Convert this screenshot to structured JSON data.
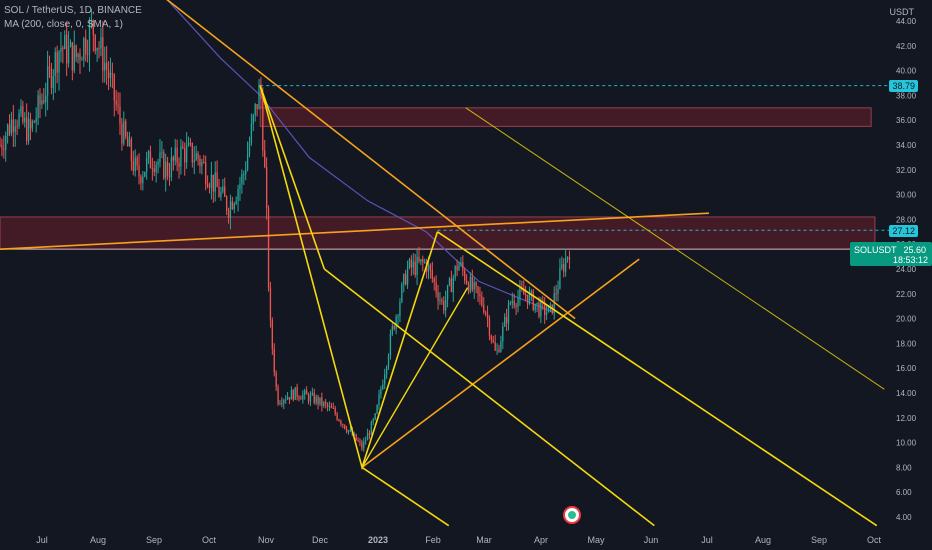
{
  "legend": {
    "title": "SOL / TetherUS, 1D, BINANCE",
    "indicator": "MA (200, close, 0, SMA, 1)"
  },
  "currency": "USDT",
  "price_tags": {
    "level_high": "38.79",
    "level_mid": "27.12",
    "symbol": "SOLUSDT",
    "last_price": "25.60",
    "countdown": "18:53:12"
  },
  "colors": {
    "background": "#131722",
    "up_candle": "#26a69a",
    "down_candle": "#ef5350",
    "ma": "#5b53b6",
    "zone": "#6b1f2a",
    "trendline": "#f7a21b",
    "pitchfork": "#f5d90a",
    "cyan_tag": "#26c6da",
    "price_tag": "#089981"
  },
  "chart_data": {
    "type": "candlestick",
    "title": "SOL / TetherUS, 1D, BINANCE",
    "y_axis_ticks": [
      "4.00",
      "6.00",
      "8.00",
      "10.00",
      "12.00",
      "14.00",
      "16.00",
      "18.00",
      "20.00",
      "22.00",
      "24.00",
      "26.00",
      "28.00",
      "30.00",
      "32.00",
      "34.00",
      "36.00",
      "38.00",
      "40.00",
      "42.00",
      "44.00"
    ],
    "x_axis_ticks": [
      "Jul",
      "Aug",
      "Sep",
      "Oct",
      "Nov",
      "Dec",
      "2023",
      "Feb",
      "Mar",
      "Apr",
      "May",
      "Jun",
      "Jul",
      "Aug",
      "Sep",
      "Oct"
    ],
    "ylim": [
      3,
      45
    ],
    "x_start": "2022-06-20",
    "x_end": "2023-10-05",
    "close_path": [
      [
        "2022-06-20",
        34.0
      ],
      [
        "2022-06-28",
        36.5
      ],
      [
        "2022-07-06",
        35.0
      ],
      [
        "2022-07-14",
        38.5
      ],
      [
        "2022-07-22",
        42.0
      ],
      [
        "2022-07-30",
        41.0
      ],
      [
        "2022-08-08",
        43.5
      ],
      [
        "2022-08-16",
        40.0
      ],
      [
        "2022-08-24",
        35.0
      ],
      [
        "2022-09-01",
        31.5
      ],
      [
        "2022-09-09",
        33.0
      ],
      [
        "2022-09-17",
        32.0
      ],
      [
        "2022-09-25",
        33.5
      ],
      [
        "2022-10-03",
        33.0
      ],
      [
        "2022-10-11",
        31.0
      ],
      [
        "2022-10-19",
        29.0
      ],
      [
        "2022-10-27",
        31.5
      ],
      [
        "2022-11-05",
        38.8
      ],
      [
        "2022-11-08",
        30.0
      ],
      [
        "2022-11-10",
        20.0
      ],
      [
        "2022-11-14",
        13.5
      ],
      [
        "2022-11-24",
        14.0
      ],
      [
        "2022-12-04",
        13.5
      ],
      [
        "2022-12-14",
        12.5
      ],
      [
        "2022-12-29",
        9.6
      ],
      [
        "2023-01-05",
        12.0
      ],
      [
        "2023-01-14",
        19.0
      ],
      [
        "2023-01-22",
        24.0
      ],
      [
        "2023-02-01",
        24.5
      ],
      [
        "2023-02-10",
        21.0
      ],
      [
        "2023-02-18",
        24.5
      ],
      [
        "2023-02-25",
        22.5
      ],
      [
        "2023-03-04",
        21.0
      ],
      [
        "2023-03-10",
        17.0
      ],
      [
        "2023-03-18",
        21.5
      ],
      [
        "2023-03-26",
        22.0
      ],
      [
        "2023-04-02",
        20.8
      ],
      [
        "2023-04-08",
        20.5
      ],
      [
        "2023-04-14",
        24.0
      ],
      [
        "2023-04-18",
        25.6
      ]
    ],
    "moving_average": {
      "name": "MA (200, close, 0, SMA, 1)",
      "points": [
        [
          "2022-08-15",
          52.0
        ],
        [
          "2022-09-15",
          46.0
        ],
        [
          "2022-10-15",
          41.0
        ],
        [
          "2022-11-05",
          38.0
        ],
        [
          "2022-12-01",
          33.0
        ],
        [
          "2023-01-01",
          29.5
        ],
        [
          "2023-02-01",
          27.0
        ],
        [
          "2023-03-01",
          23.0
        ],
        [
          "2023-03-20",
          21.8
        ],
        [
          "2023-04-10",
          20.5
        ]
      ]
    },
    "zones": [
      {
        "x1": "2022-11-05",
        "x2": "2023-09-25",
        "y1": 35.5,
        "y2": 37.0
      },
      {
        "x1": "2022-06-20",
        "x2": "2023-09-27",
        "y1": 25.6,
        "y2": 28.2
      }
    ],
    "horizontal_lines": [
      {
        "y": 38.79,
        "from": "2022-11-05"
      },
      {
        "y": 27.12,
        "from": "2023-02-07"
      },
      {
        "y": 25.6,
        "from": "2022-06-20"
      }
    ],
    "trendlines": [
      {
        "name": "descending",
        "color": "trendline",
        "from": [
          "2022-08-20",
          49.0
        ],
        "to": [
          "2023-04-21",
          20.0
        ]
      },
      {
        "name": "support",
        "color": "trendline",
        "from": [
          "2022-06-20",
          25.6
        ],
        "to": [
          "2023-07-01",
          28.5
        ]
      },
      {
        "name": "rising",
        "color": "trendline",
        "from": [
          "2022-12-29",
          8.0
        ],
        "to": [
          "2023-05-25",
          24.8
        ]
      },
      {
        "name": "faint",
        "color": "pitchfork",
        "from": [
          "2023-02-22",
          37.0
        ],
        "to": [
          "2023-10-02",
          14.3
        ]
      }
    ],
    "pitchfork": {
      "vertices": [
        [
          "2022-11-05",
          38.79
        ],
        [
          "2022-12-29",
          8.0
        ],
        [
          "2023-02-07",
          27.0
        ]
      ],
      "mid_start": [
        "2022-12-09",
        24.0
      ],
      "handles": [
        {
          "from": [
            "2022-12-09",
            24.0
          ],
          "to": [
            "2023-06-02",
            3.3
          ]
        },
        {
          "from": [
            "2023-02-07",
            27.0
          ],
          "to": [
            "2023-09-28",
            3.3
          ]
        },
        {
          "from": [
            "2022-12-29",
            8.0
          ],
          "to": [
            "2023-02-13",
            3.3
          ]
        }
      ]
    },
    "candles": {
      "count": 300,
      "seed": 7
    }
  }
}
